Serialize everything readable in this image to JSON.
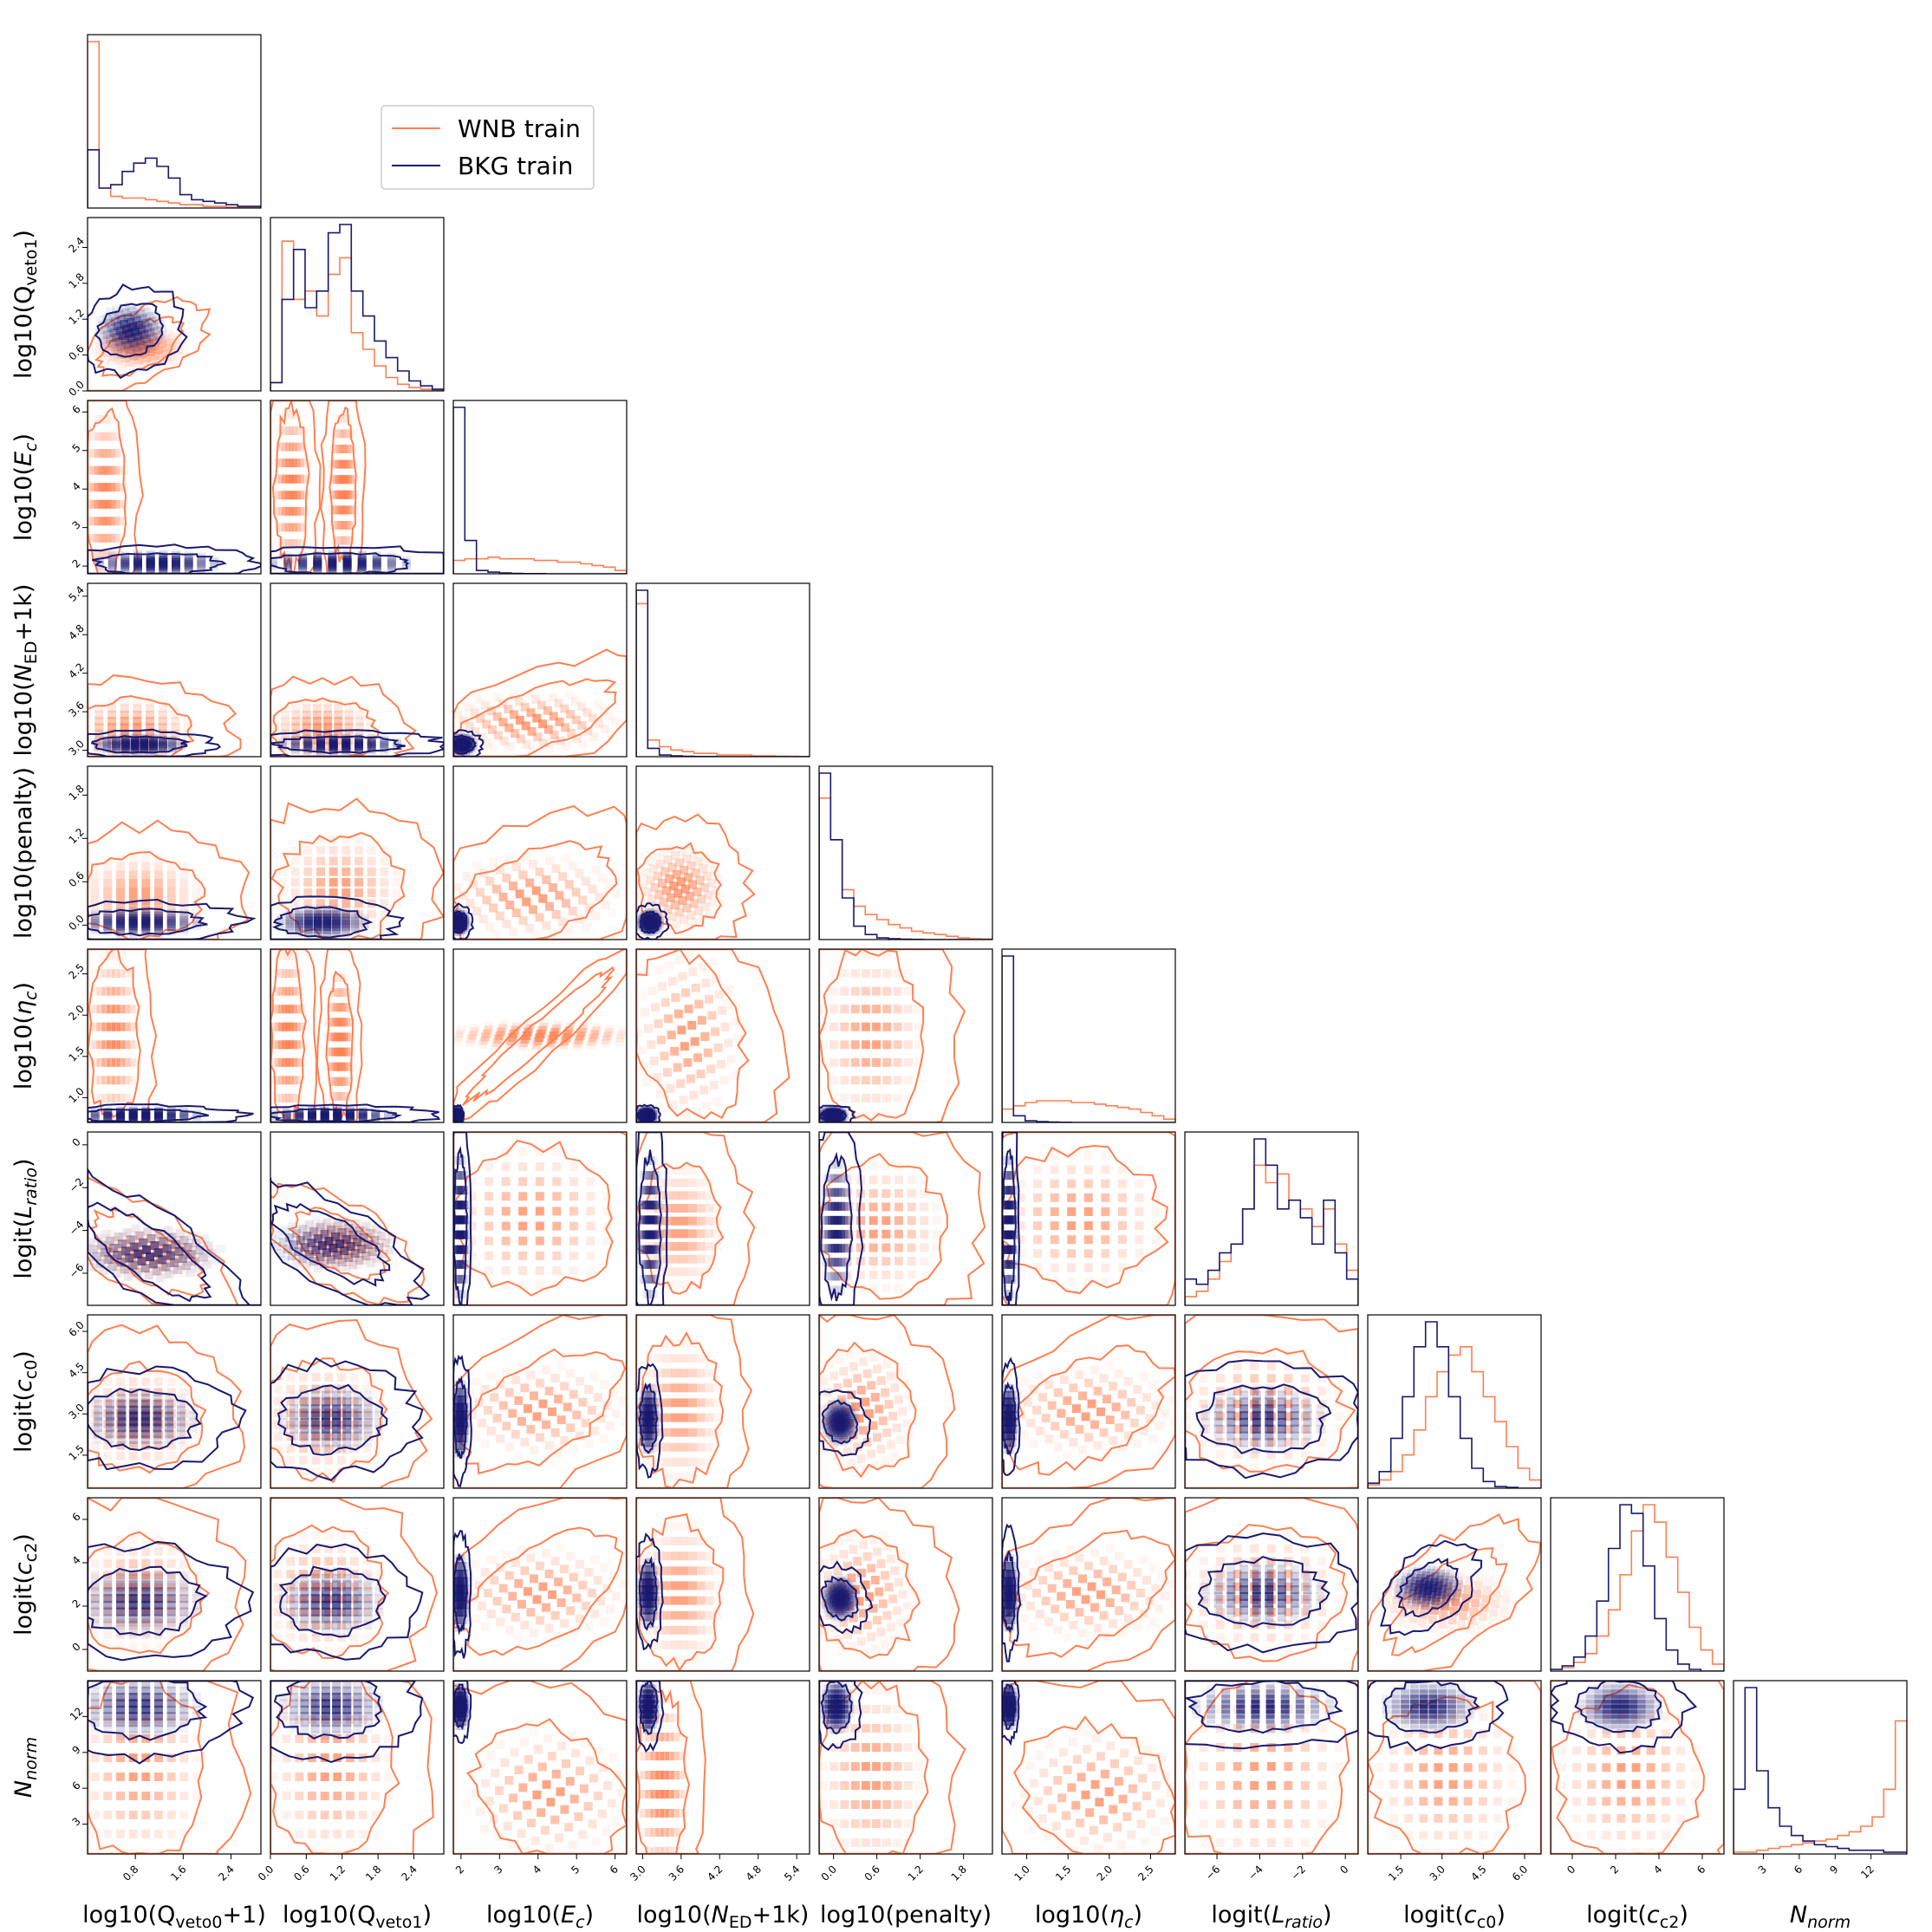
{
  "chart_data": {
    "type": "corner",
    "title": "",
    "colors": {
      "wnb": "#ff7f50",
      "bkg": "#191970"
    },
    "legend": {
      "placement": "top-left",
      "entries": [
        {
          "name": "WNB train",
          "color": "#ff7f50"
        },
        {
          "name": "BKG train",
          "color": "#191970"
        }
      ]
    },
    "variables": [
      {
        "label": "log10(Q<sub>veto0</sub>+1)",
        "range": [
          0.0,
          2.9
        ],
        "ticks": [
          "0.8",
          "1.6",
          "2.4"
        ],
        "tickvals": [
          0.8,
          1.6,
          2.4
        ]
      },
      {
        "label": "log10(Q<sub>veto1</sub>)",
        "range": [
          0.0,
          2.9
        ],
        "ticks": [
          "0.0",
          "0.6",
          "1.2",
          "1.8",
          "2.4"
        ],
        "tickvals": [
          0.0,
          0.6,
          1.2,
          1.8,
          2.4
        ]
      },
      {
        "label": "log10(<i>E</i><sub>c</sub>)",
        "range": [
          1.8,
          6.3
        ],
        "ticks": [
          "2",
          "3",
          "4",
          "5",
          "6"
        ],
        "tickvals": [
          2,
          3,
          4,
          5,
          6
        ]
      },
      {
        "label": "log10(<i>N</i><sub>ED</sub>+1k)",
        "range": [
          2.9,
          5.6
        ],
        "ticks": [
          "3.0",
          "3.6",
          "4.2",
          "4.8",
          "5.4"
        ],
        "tickvals": [
          3.0,
          3.6,
          4.2,
          4.8,
          5.4
        ]
      },
      {
        "label": "log10(penalty)",
        "range": [
          -0.2,
          2.2
        ],
        "ticks": [
          "0.0",
          "0.6",
          "1.2",
          "1.8"
        ],
        "tickvals": [
          0.0,
          0.6,
          1.2,
          1.8
        ]
      },
      {
        "label": "log10(<i>η</i><sub>c</sub>)",
        "range": [
          0.7,
          2.8
        ],
        "ticks": [
          "1.0",
          "1.5",
          "2.0",
          "2.5"
        ],
        "tickvals": [
          1.0,
          1.5,
          2.0,
          2.5
        ]
      },
      {
        "label": "logit(<i>L</i><sub>ratio</sub>)",
        "range": [
          -7.5,
          0.6
        ],
        "ticks": [
          "−6",
          "−4",
          "−2",
          "0"
        ],
        "tickvals": [
          -6,
          -4,
          -2,
          0
        ]
      },
      {
        "label": "logit(<i>c</i><sub>c0</sub>)",
        "range": [
          0.3,
          6.6
        ],
        "ticks": [
          "1.5",
          "3.0",
          "4.5",
          "6.0"
        ],
        "tickvals": [
          1.5,
          3.0,
          4.5,
          6.0
        ]
      },
      {
        "label": "logit(<i>c</i><sub>c2</sub>)",
        "range": [
          -1.0,
          7.0
        ],
        "ticks": [
          "0",
          "2",
          "4",
          "6"
        ],
        "tickvals": [
          0,
          2,
          4,
          6
        ]
      },
      {
        "label": "<i>N</i><sub>norm</sub>",
        "range": [
          0.5,
          15.0
        ],
        "ticks": [
          "3",
          "6",
          "9",
          "12"
        ],
        "tickvals": [
          3,
          6,
          9,
          12
        ]
      }
    ],
    "ylabels_left": [
      "log10(Q<sub>veto1</sub>)",
      "log10(<i>E</i><sub>c</sub>)",
      "log10(<i>N</i><sub>ED</sub>+1k)",
      "log10(penalty)",
      "log10(<i>η</i><sub>c</sub>)",
      "logit(<i>L</i><sub>ratio</sub>)",
      "logit(<i>c</i><sub>c0</sub>)",
      "logit(<i>c</i><sub>c2</sub>)",
      "<i>N</i><sub>norm</sub>"
    ],
    "histograms": {
      "wnb": [
        [
          1.0,
          0.12,
          0.07,
          0.06,
          0.06,
          0.05,
          0.04,
          0.03,
          0.02,
          0.02,
          0.01,
          0.01,
          0.005,
          0.005,
          0.003
        ],
        [
          0.05,
          0.9,
          0.55,
          0.6,
          0.45,
          0.7,
          0.8,
          0.35,
          0.25,
          0.15,
          0.08,
          0.04,
          0.02,
          0.01,
          0.005
        ],
        [
          0.08,
          0.09,
          0.09,
          0.1,
          0.09,
          0.09,
          0.09,
          0.08,
          0.08,
          0.07,
          0.07,
          0.06,
          0.05,
          0.04,
          0.02
        ],
        [
          0.92,
          0.1,
          0.06,
          0.04,
          0.03,
          0.02,
          0.02,
          0.01,
          0.01,
          0.01,
          0.005,
          0.005,
          0.003,
          0.002,
          0.001
        ],
        [
          0.85,
          0.6,
          0.3,
          0.2,
          0.15,
          0.12,
          0.09,
          0.07,
          0.05,
          0.04,
          0.03,
          0.02,
          0.01,
          0.005,
          0.003
        ],
        [
          0.08,
          0.1,
          0.12,
          0.13,
          0.13,
          0.13,
          0.12,
          0.12,
          0.11,
          0.1,
          0.09,
          0.08,
          0.06,
          0.04,
          0.02
        ],
        [
          0.05,
          0.08,
          0.15,
          0.25,
          0.35,
          0.55,
          0.8,
          0.7,
          0.75,
          0.6,
          0.55,
          0.45,
          0.55,
          0.35,
          0.2
        ],
        [
          0.02,
          0.05,
          0.1,
          0.2,
          0.35,
          0.55,
          0.7,
          0.8,
          0.85,
          0.7,
          0.55,
          0.4,
          0.25,
          0.12,
          0.05
        ],
        [
          0.01,
          0.02,
          0.05,
          0.1,
          0.2,
          0.35,
          0.55,
          0.8,
          0.95,
          0.85,
          0.65,
          0.45,
          0.25,
          0.12,
          0.04
        ],
        [
          0.01,
          0.01,
          0.02,
          0.03,
          0.04,
          0.05,
          0.06,
          0.07,
          0.08,
          0.1,
          0.12,
          0.15,
          0.2,
          0.35,
          0.72
        ]
      ],
      "bkg": [
        [
          0.35,
          0.12,
          0.14,
          0.22,
          0.27,
          0.3,
          0.25,
          0.18,
          0.08,
          0.05,
          0.04,
          0.03,
          0.02,
          0.01,
          0.01
        ],
        [
          0.05,
          0.55,
          0.85,
          0.5,
          0.6,
          0.95,
          1.0,
          0.6,
          0.45,
          0.3,
          0.2,
          0.12,
          0.06,
          0.03,
          0.01
        ],
        [
          1.0,
          0.2,
          0.02,
          0.01,
          0.005,
          0.002,
          0.001,
          0.001,
          0.0,
          0.0,
          0.0,
          0.0,
          0.0,
          0.0,
          0.0
        ],
        [
          1.0,
          0.05,
          0.01,
          0.005,
          0.002,
          0.001,
          0.001,
          0.0,
          0.0,
          0.0,
          0.0,
          0.0,
          0.0,
          0.0,
          0.0
        ],
        [
          1.0,
          0.6,
          0.25,
          0.08,
          0.03,
          0.01,
          0.005,
          0.002,
          0.001,
          0.0,
          0.0,
          0.0,
          0.0,
          0.0,
          0.0
        ],
        [
          1.0,
          0.04,
          0.01,
          0.005,
          0.002,
          0.001,
          0.0,
          0.0,
          0.0,
          0.0,
          0.0,
          0.0,
          0.0,
          0.0,
          0.0
        ],
        [
          0.15,
          0.12,
          0.2,
          0.3,
          0.35,
          0.55,
          0.95,
          0.8,
          0.55,
          0.6,
          0.5,
          0.35,
          0.6,
          0.3,
          0.15
        ],
        [
          0.03,
          0.1,
          0.3,
          0.55,
          0.85,
          1.0,
          0.85,
          0.55,
          0.3,
          0.12,
          0.04,
          0.01,
          0.005,
          0.0,
          0.0
        ],
        [
          0.01,
          0.03,
          0.08,
          0.2,
          0.4,
          0.7,
          0.95,
          0.9,
          0.6,
          0.3,
          0.12,
          0.04,
          0.01,
          0.0,
          0.0
        ],
        [
          0.35,
          0.9,
          0.45,
          0.25,
          0.15,
          0.1,
          0.07,
          0.05,
          0.04,
          0.03,
          0.02,
          0.02,
          0.02,
          0.01,
          0.01
        ]
      ]
    }
  }
}
